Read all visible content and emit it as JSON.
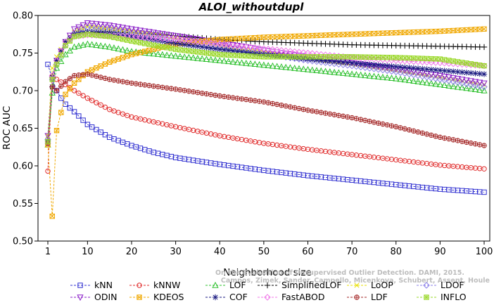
{
  "chart_data": {
    "type": "line",
    "title": "ALOI_withoutdupl",
    "xlabel": "Neighborhood size",
    "ylabel": "ROC AUC",
    "xlim": [
      0,
      100
    ],
    "ylim": [
      0.5,
      0.8
    ],
    "x_ticks": [
      "1",
      "10",
      "20",
      "30",
      "40",
      "50",
      "60",
      "70",
      "80",
      "90",
      "100"
    ],
    "y_ticks": [
      "0.50",
      "0.55",
      "0.60",
      "0.65",
      "0.70",
      "0.75",
      "0.80"
    ],
    "grid": false,
    "legend_position": "bottom",
    "watermark": [
      "Campos, Zimek, Sander, Campello, Micenkova, Schubert, Assent, Houle",
      "On the Evaluation of Unsupervised Outlier Detection. DAMI, 2015."
    ],
    "series": [
      {
        "name": "kNN",
        "color": "#2f2fd0",
        "marker": "square",
        "points": [
          [
            1,
            0.735
          ],
          [
            2,
            0.716
          ],
          [
            3,
            0.7
          ],
          [
            4,
            0.69
          ],
          [
            5,
            0.682
          ],
          [
            7,
            0.672
          ],
          [
            10,
            0.655
          ],
          [
            15,
            0.638
          ],
          [
            20,
            0.627
          ],
          [
            25,
            0.618
          ],
          [
            30,
            0.611
          ],
          [
            40,
            0.602
          ],
          [
            50,
            0.594
          ],
          [
            60,
            0.587
          ],
          [
            70,
            0.581
          ],
          [
            80,
            0.575
          ],
          [
            90,
            0.569
          ],
          [
            100,
            0.565
          ]
        ]
      },
      {
        "name": "kNNW",
        "color": "#e02a2a",
        "marker": "circle",
        "points": [
          [
            1,
            0.593
          ],
          [
            2,
            0.72
          ],
          [
            3,
            0.715
          ],
          [
            5,
            0.708
          ],
          [
            7,
            0.7
          ],
          [
            10,
            0.69
          ],
          [
            15,
            0.675
          ],
          [
            20,
            0.665
          ],
          [
            30,
            0.652
          ],
          [
            40,
            0.64
          ],
          [
            50,
            0.63
          ],
          [
            60,
            0.622
          ],
          [
            70,
            0.615
          ],
          [
            80,
            0.608
          ],
          [
            90,
            0.601
          ],
          [
            100,
            0.596
          ]
        ]
      },
      {
        "name": "LOF",
        "color": "#2ec02e",
        "marker": "triangle-up",
        "points": [
          [
            1,
            0.628
          ],
          [
            2,
            0.697
          ],
          [
            3,
            0.73
          ],
          [
            5,
            0.748
          ],
          [
            7,
            0.758
          ],
          [
            10,
            0.762
          ],
          [
            15,
            0.758
          ],
          [
            20,
            0.752
          ],
          [
            30,
            0.746
          ],
          [
            40,
            0.74
          ],
          [
            50,
            0.734
          ],
          [
            60,
            0.728
          ],
          [
            70,
            0.722
          ],
          [
            80,
            0.716
          ],
          [
            90,
            0.708
          ],
          [
            100,
            0.7
          ]
        ]
      },
      {
        "name": "SimplifiedLOF",
        "color": "#000000",
        "marker": "plus",
        "points": [
          [
            1,
            0.635
          ],
          [
            2,
            0.72
          ],
          [
            3,
            0.74
          ],
          [
            5,
            0.765
          ],
          [
            7,
            0.775
          ],
          [
            10,
            0.778
          ],
          [
            15,
            0.778
          ],
          [
            20,
            0.777
          ],
          [
            30,
            0.773
          ],
          [
            40,
            0.768
          ],
          [
            50,
            0.765
          ],
          [
            60,
            0.763
          ],
          [
            70,
            0.761
          ],
          [
            80,
            0.76
          ],
          [
            90,
            0.759
          ],
          [
            100,
            0.758
          ]
        ]
      },
      {
        "name": "LoOP",
        "color": "#e8e000",
        "marker": "x",
        "points": [
          [
            1,
            0.64
          ],
          [
            2,
            0.73
          ],
          [
            3,
            0.745
          ],
          [
            5,
            0.765
          ],
          [
            7,
            0.778
          ],
          [
            10,
            0.785
          ],
          [
            15,
            0.782
          ],
          [
            20,
            0.778
          ],
          [
            30,
            0.77
          ],
          [
            40,
            0.76
          ],
          [
            50,
            0.75
          ],
          [
            60,
            0.742
          ],
          [
            70,
            0.735
          ],
          [
            80,
            0.727
          ],
          [
            90,
            0.718
          ],
          [
            100,
            0.708
          ]
        ]
      },
      {
        "name": "LDOF",
        "color": "#8b7fe8",
        "marker": "diamond",
        "points": [
          [
            1,
            0.635
          ],
          [
            2,
            0.715
          ],
          [
            3,
            0.735
          ],
          [
            5,
            0.76
          ],
          [
            7,
            0.775
          ],
          [
            10,
            0.784
          ],
          [
            15,
            0.782
          ],
          [
            20,
            0.777
          ],
          [
            30,
            0.768
          ],
          [
            40,
            0.758
          ],
          [
            50,
            0.749
          ],
          [
            60,
            0.74
          ],
          [
            70,
            0.733
          ],
          [
            80,
            0.725
          ],
          [
            90,
            0.715
          ],
          [
            100,
            0.705
          ]
        ]
      },
      {
        "name": "ODIN",
        "color": "#8a1ec8",
        "marker": "triangle-down",
        "points": [
          [
            1,
            0.64
          ],
          [
            2,
            0.715
          ],
          [
            3,
            0.74
          ],
          [
            5,
            0.765
          ],
          [
            7,
            0.782
          ],
          [
            10,
            0.79
          ],
          [
            15,
            0.787
          ],
          [
            20,
            0.782
          ],
          [
            30,
            0.773
          ],
          [
            40,
            0.764
          ],
          [
            50,
            0.754
          ],
          [
            60,
            0.745
          ],
          [
            70,
            0.737
          ],
          [
            80,
            0.729
          ],
          [
            90,
            0.72
          ],
          [
            100,
            0.71
          ]
        ]
      },
      {
        "name": "KDEOS",
        "color": "#f0a800",
        "marker": "square-x",
        "points": [
          [
            1,
            0.628
          ],
          [
            2,
            0.533
          ],
          [
            3,
            0.647
          ],
          [
            5,
            0.695
          ],
          [
            7,
            0.71
          ],
          [
            10,
            0.725
          ],
          [
            15,
            0.738
          ],
          [
            20,
            0.748
          ],
          [
            30,
            0.762
          ],
          [
            40,
            0.768
          ],
          [
            50,
            0.771
          ],
          [
            60,
            0.773
          ],
          [
            70,
            0.775
          ],
          [
            80,
            0.777
          ],
          [
            90,
            0.779
          ],
          [
            100,
            0.782
          ]
        ]
      },
      {
        "name": "COF",
        "color": "#1a1a80",
        "marker": "asterisk",
        "points": [
          [
            1,
            0.633
          ],
          [
            2,
            0.705
          ],
          [
            3,
            0.74
          ],
          [
            5,
            0.765
          ],
          [
            7,
            0.775
          ],
          [
            10,
            0.778
          ],
          [
            15,
            0.776
          ],
          [
            20,
            0.772
          ],
          [
            30,
            0.763
          ],
          [
            40,
            0.755
          ],
          [
            50,
            0.748
          ],
          [
            60,
            0.742
          ],
          [
            70,
            0.737
          ],
          [
            80,
            0.732
          ],
          [
            90,
            0.727
          ],
          [
            100,
            0.722
          ]
        ]
      },
      {
        "name": "FastABOD",
        "color": "#f07ae8",
        "marker": "diamond",
        "points": [
          [
            1,
            0.63
          ],
          [
            2,
            0.72
          ],
          [
            3,
            0.74
          ],
          [
            5,
            0.765
          ],
          [
            7,
            0.772
          ],
          [
            10,
            0.774
          ],
          [
            15,
            0.773
          ],
          [
            20,
            0.772
          ],
          [
            30,
            0.768
          ],
          [
            40,
            0.762
          ],
          [
            50,
            0.756
          ],
          [
            60,
            0.75
          ],
          [
            70,
            0.744
          ],
          [
            80,
            0.74
          ],
          [
            90,
            0.737
          ],
          [
            100,
            0.733
          ]
        ]
      },
      {
        "name": "LDF",
        "color": "#a52a2a",
        "marker": "circle-plus",
        "points": [
          [
            1,
            0.63
          ],
          [
            2,
            0.705
          ],
          [
            3,
            0.7
          ],
          [
            5,
            0.712
          ],
          [
            7,
            0.72
          ],
          [
            10,
            0.722
          ],
          [
            15,
            0.715
          ],
          [
            20,
            0.71
          ],
          [
            30,
            0.702
          ],
          [
            40,
            0.693
          ],
          [
            50,
            0.685
          ],
          [
            60,
            0.674
          ],
          [
            70,
            0.664
          ],
          [
            80,
            0.652
          ],
          [
            90,
            0.638
          ],
          [
            100,
            0.627
          ]
        ]
      },
      {
        "name": "INFLO",
        "color": "#9ad82a",
        "marker": "star-box",
        "points": [
          [
            1,
            0.632
          ],
          [
            2,
            0.715
          ],
          [
            3,
            0.735
          ],
          [
            5,
            0.76
          ],
          [
            7,
            0.772
          ],
          [
            10,
            0.775
          ],
          [
            15,
            0.772
          ],
          [
            20,
            0.766
          ],
          [
            30,
            0.755
          ],
          [
            40,
            0.748
          ],
          [
            50,
            0.745
          ],
          [
            60,
            0.745
          ],
          [
            70,
            0.745
          ],
          [
            80,
            0.744
          ],
          [
            90,
            0.742
          ],
          [
            100,
            0.733
          ]
        ]
      }
    ]
  }
}
